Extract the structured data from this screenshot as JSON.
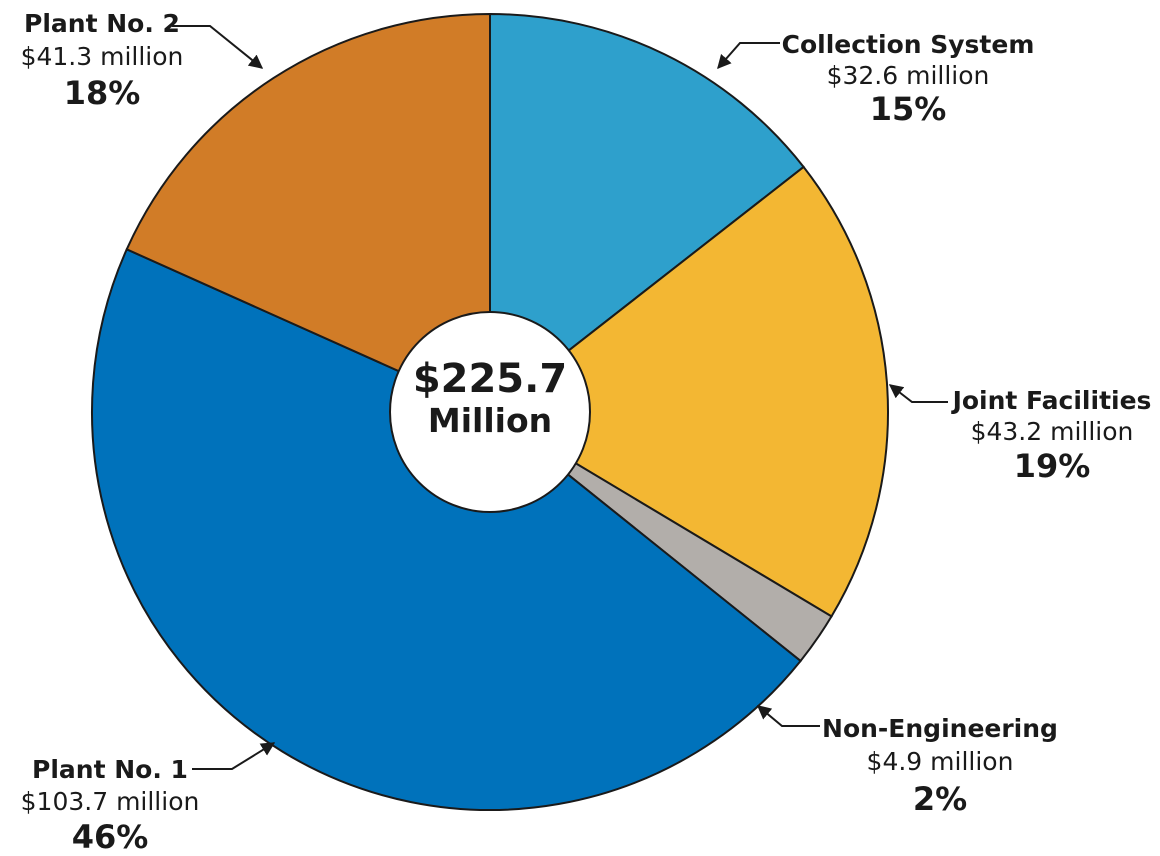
{
  "chart_data": {
    "type": "pie",
    "style": "donut",
    "center_label": {
      "value": "$225.7",
      "unit": "Million"
    },
    "slices": [
      {
        "name": "Collection System",
        "amount": "$32.6 million",
        "percent": "15%",
        "value": 32.6,
        "color": "#2ea0cc"
      },
      {
        "name": "Joint Facilities",
        "amount": "$43.2 million",
        "percent": "19%",
        "value": 43.2,
        "color": "#f3b733"
      },
      {
        "name": "Non-Engineering",
        "amount": "$4.9 million",
        "percent": "2%",
        "value": 4.9,
        "color": "#b2aeaa"
      },
      {
        "name": "Plant No. 1",
        "amount": "$103.7 million",
        "percent": "46%",
        "value": 103.7,
        "color": "#0072bb"
      },
      {
        "name": "Plant No. 2",
        "amount": "$41.3 million",
        "percent": "18%",
        "value": 41.3,
        "color": "#d17c27"
      }
    ]
  }
}
